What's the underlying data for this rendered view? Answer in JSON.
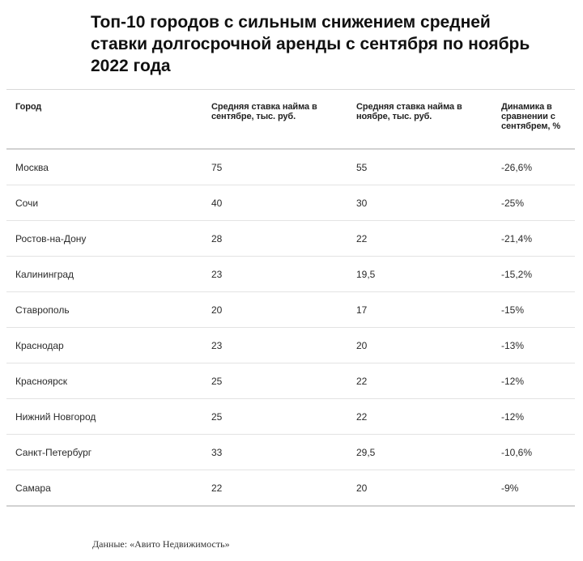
{
  "title": "Топ-10 городов с сильным снижением средней ставки долгосрочной аренды с сентября по ноябрь 2022 года",
  "table": {
    "headers": [
      "Город",
      "Средняя ставка найма в сентябре, тыс. руб.",
      "Средняя ставка найма в ноябре, тыс. руб.",
      "Динамика в сравнении с сентябрем, %"
    ],
    "rows": [
      [
        "Москва",
        "75",
        "55",
        "-26,6%"
      ],
      [
        "Сочи",
        "40",
        "30",
        "-25%"
      ],
      [
        "Ростов-на-Дону",
        "28",
        "22",
        "-21,4%"
      ],
      [
        "Калининград",
        "23",
        "19,5",
        "-15,2%"
      ],
      [
        "Ставрополь",
        "20",
        "17",
        "-15%"
      ],
      [
        "Краснодар",
        "23",
        "20",
        "-13%"
      ],
      [
        "Красноярск",
        "25",
        "22",
        "-12%"
      ],
      [
        "Нижний Новгород",
        "25",
        "22",
        "-12%"
      ],
      [
        "Санкт-Петербург",
        "33",
        "29,5",
        "-10,6%"
      ],
      [
        "Самара",
        "22",
        "20",
        "-9%"
      ]
    ]
  },
  "source": "Данные: «Авито Недвижимость»"
}
